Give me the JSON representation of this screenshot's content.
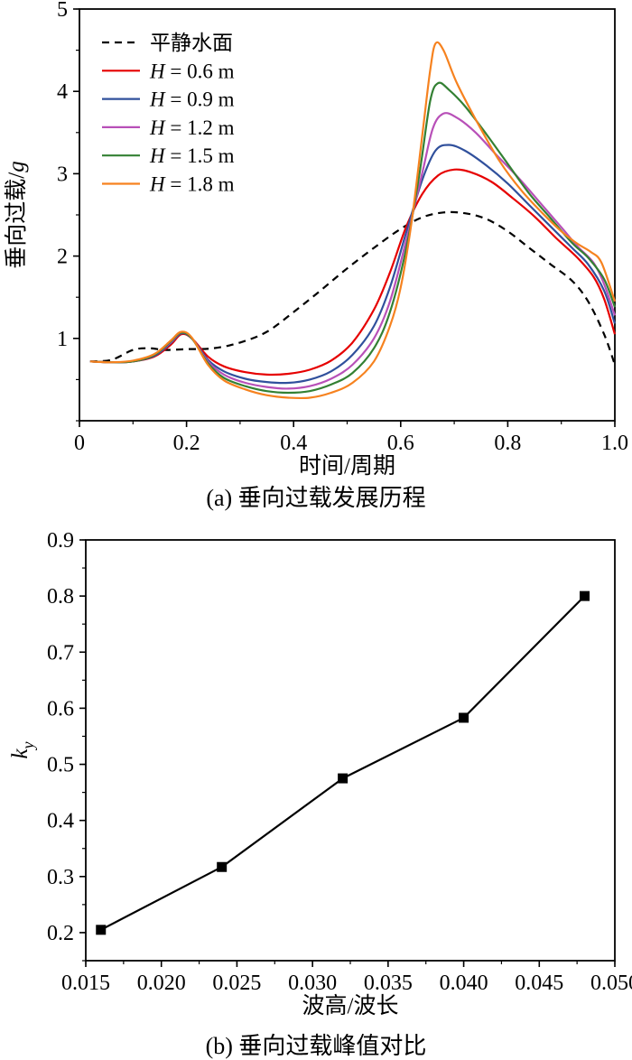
{
  "chart_data": [
    {
      "type": "line",
      "caption": "(a) 垂向过载发展历程",
      "xlabel": "时间/周期",
      "ylabel": "垂向过载/g",
      "ylabel_parts": [
        {
          "t": "垂向过载/"
        },
        {
          "t": "g",
          "i": true
        }
      ],
      "xlim": [
        0,
        1.0
      ],
      "ylim": [
        0,
        5
      ],
      "xticks": [
        {
          "v": 0,
          "label": "0"
        },
        {
          "v": 0.2,
          "label": "0.2"
        },
        {
          "v": 0.4,
          "label": "0.4"
        },
        {
          "v": 0.6,
          "label": "0.6"
        },
        {
          "v": 0.8,
          "label": "0.8"
        },
        {
          "v": 1.0,
          "label": "1.0"
        }
      ],
      "yticks": [
        {
          "v": 1,
          "label": "1"
        },
        {
          "v": 2,
          "label": "2"
        },
        {
          "v": 3,
          "label": "3"
        },
        {
          "v": 4,
          "label": "4"
        },
        {
          "v": 5,
          "label": "5"
        }
      ],
      "xminor": 0.1,
      "yminor": 0.5,
      "grid": false,
      "legend": {
        "position": "top-left"
      },
      "series": [
        {
          "name": "平静水面",
          "label_parts": [
            {
              "t": "平静水面"
            }
          ],
          "color": "#000000",
          "dash": "8 6",
          "points": [
            [
              0.02,
              0.72
            ],
            [
              0.06,
              0.74
            ],
            [
              0.1,
              0.86
            ],
            [
              0.13,
              0.88
            ],
            [
              0.16,
              0.86
            ],
            [
              0.2,
              0.87
            ],
            [
              0.25,
              0.88
            ],
            [
              0.3,
              0.95
            ],
            [
              0.35,
              1.08
            ],
            [
              0.4,
              1.32
            ],
            [
              0.45,
              1.58
            ],
            [
              0.5,
              1.85
            ],
            [
              0.55,
              2.1
            ],
            [
              0.6,
              2.33
            ],
            [
              0.64,
              2.47
            ],
            [
              0.68,
              2.53
            ],
            [
              0.72,
              2.52
            ],
            [
              0.76,
              2.45
            ],
            [
              0.8,
              2.3
            ],
            [
              0.84,
              2.1
            ],
            [
              0.88,
              1.9
            ],
            [
              0.92,
              1.7
            ],
            [
              0.95,
              1.45
            ],
            [
              0.98,
              1.05
            ],
            [
              1.0,
              0.68
            ]
          ]
        },
        {
          "name": "H = 0.6 m",
          "label_parts": [
            {
              "t": "H",
              "i": true
            },
            {
              "t": " = 0.6 m"
            }
          ],
          "color": "#e60000",
          "points": [
            [
              0.02,
              0.72
            ],
            [
              0.06,
              0.71
            ],
            [
              0.1,
              0.72
            ],
            [
              0.14,
              0.78
            ],
            [
              0.17,
              0.92
            ],
            [
              0.19,
              1.05
            ],
            [
              0.21,
              1.0
            ],
            [
              0.24,
              0.78
            ],
            [
              0.27,
              0.66
            ],
            [
              0.31,
              0.59
            ],
            [
              0.35,
              0.56
            ],
            [
              0.39,
              0.57
            ],
            [
              0.43,
              0.62
            ],
            [
              0.47,
              0.73
            ],
            [
              0.51,
              0.95
            ],
            [
              0.55,
              1.35
            ],
            [
              0.58,
              1.8
            ],
            [
              0.61,
              2.35
            ],
            [
              0.64,
              2.75
            ],
            [
              0.67,
              2.98
            ],
            [
              0.7,
              3.05
            ],
            [
              0.73,
              3.02
            ],
            [
              0.77,
              2.9
            ],
            [
              0.81,
              2.7
            ],
            [
              0.85,
              2.48
            ],
            [
              0.89,
              2.22
            ],
            [
              0.93,
              1.98
            ],
            [
              0.96,
              1.75
            ],
            [
              0.98,
              1.48
            ],
            [
              1.0,
              1.05
            ]
          ]
        },
        {
          "name": "H = 0.9 m",
          "label_parts": [
            {
              "t": "H",
              "i": true
            },
            {
              "t": " = 0.9 m"
            }
          ],
          "color": "#30509c",
          "points": [
            [
              0.02,
              0.72
            ],
            [
              0.06,
              0.71
            ],
            [
              0.1,
              0.72
            ],
            [
              0.14,
              0.79
            ],
            [
              0.17,
              0.94
            ],
            [
              0.19,
              1.06
            ],
            [
              0.21,
              1.0
            ],
            [
              0.24,
              0.74
            ],
            [
              0.27,
              0.6
            ],
            [
              0.31,
              0.51
            ],
            [
              0.35,
              0.47
            ],
            [
              0.39,
              0.46
            ],
            [
              0.43,
              0.5
            ],
            [
              0.47,
              0.6
            ],
            [
              0.51,
              0.8
            ],
            [
              0.55,
              1.15
            ],
            [
              0.58,
              1.62
            ],
            [
              0.61,
              2.28
            ],
            [
              0.64,
              2.92
            ],
            [
              0.665,
              3.28
            ],
            [
              0.69,
              3.35
            ],
            [
              0.72,
              3.28
            ],
            [
              0.76,
              3.1
            ],
            [
              0.8,
              2.88
            ],
            [
              0.84,
              2.62
            ],
            [
              0.88,
              2.36
            ],
            [
              0.92,
              2.1
            ],
            [
              0.95,
              1.9
            ],
            [
              0.98,
              1.58
            ],
            [
              1.0,
              1.18
            ]
          ]
        },
        {
          "name": "H = 1.2 m",
          "label_parts": [
            {
              "t": "H",
              "i": true
            },
            {
              "t": " = 1.2 m"
            }
          ],
          "color": "#b850b8",
          "points": [
            [
              0.02,
              0.72
            ],
            [
              0.06,
              0.71
            ],
            [
              0.1,
              0.72
            ],
            [
              0.14,
              0.8
            ],
            [
              0.17,
              0.95
            ],
            [
              0.19,
              1.07
            ],
            [
              0.21,
              1.0
            ],
            [
              0.24,
              0.72
            ],
            [
              0.27,
              0.56
            ],
            [
              0.31,
              0.46
            ],
            [
              0.35,
              0.41
            ],
            [
              0.39,
              0.39
            ],
            [
              0.43,
              0.42
            ],
            [
              0.47,
              0.51
            ],
            [
              0.51,
              0.68
            ],
            [
              0.55,
              1.0
            ],
            [
              0.58,
              1.45
            ],
            [
              0.61,
              2.18
            ],
            [
              0.64,
              3.0
            ],
            [
              0.66,
              3.55
            ],
            [
              0.68,
              3.73
            ],
            [
              0.705,
              3.68
            ],
            [
              0.74,
              3.5
            ],
            [
              0.78,
              3.22
            ],
            [
              0.82,
              2.95
            ],
            [
              0.86,
              2.65
            ],
            [
              0.9,
              2.35
            ],
            [
              0.93,
              2.12
            ],
            [
              0.96,
              1.92
            ],
            [
              0.98,
              1.66
            ],
            [
              1.0,
              1.28
            ]
          ]
        },
        {
          "name": "H = 1.5 m",
          "label_parts": [
            {
              "t": "H",
              "i": true
            },
            {
              "t": " = 1.5 m"
            }
          ],
          "color": "#338033",
          "points": [
            [
              0.02,
              0.72
            ],
            [
              0.06,
              0.71
            ],
            [
              0.1,
              0.72
            ],
            [
              0.14,
              0.8
            ],
            [
              0.17,
              0.96
            ],
            [
              0.19,
              1.07
            ],
            [
              0.21,
              1.0
            ],
            [
              0.24,
              0.7
            ],
            [
              0.27,
              0.52
            ],
            [
              0.31,
              0.42
            ],
            [
              0.35,
              0.36
            ],
            [
              0.39,
              0.34
            ],
            [
              0.43,
              0.36
            ],
            [
              0.47,
              0.44
            ],
            [
              0.51,
              0.58
            ],
            [
              0.55,
              0.88
            ],
            [
              0.58,
              1.32
            ],
            [
              0.61,
              2.08
            ],
            [
              0.635,
              3.0
            ],
            [
              0.655,
              3.88
            ],
            [
              0.67,
              4.1
            ],
            [
              0.69,
              4.02
            ],
            [
              0.72,
              3.82
            ],
            [
              0.76,
              3.48
            ],
            [
              0.8,
              3.12
            ],
            [
              0.84,
              2.76
            ],
            [
              0.88,
              2.46
            ],
            [
              0.92,
              2.16
            ],
            [
              0.95,
              1.98
            ],
            [
              0.98,
              1.72
            ],
            [
              1.0,
              1.38
            ]
          ]
        },
        {
          "name": "H = 1.8 m",
          "label_parts": [
            {
              "t": "H",
              "i": true
            },
            {
              "t": " = 1.8 m"
            }
          ],
          "color": "#f6821f",
          "points": [
            [
              0.02,
              0.72
            ],
            [
              0.06,
              0.71
            ],
            [
              0.1,
              0.73
            ],
            [
              0.14,
              0.81
            ],
            [
              0.17,
              0.97
            ],
            [
              0.19,
              1.08
            ],
            [
              0.21,
              1.01
            ],
            [
              0.24,
              0.68
            ],
            [
              0.27,
              0.49
            ],
            [
              0.31,
              0.38
            ],
            [
              0.35,
              0.31
            ],
            [
              0.39,
              0.28
            ],
            [
              0.43,
              0.28
            ],
            [
              0.47,
              0.34
            ],
            [
              0.51,
              0.46
            ],
            [
              0.55,
              0.72
            ],
            [
              0.58,
              1.15
            ],
            [
              0.6,
              1.62
            ],
            [
              0.62,
              2.4
            ],
            [
              0.64,
              3.45
            ],
            [
              0.655,
              4.25
            ],
            [
              0.665,
              4.58
            ],
            [
              0.68,
              4.5
            ],
            [
              0.705,
              4.1
            ],
            [
              0.745,
              3.6
            ],
            [
              0.785,
              3.15
            ],
            [
              0.825,
              2.8
            ],
            [
              0.865,
              2.52
            ],
            [
              0.9,
              2.3
            ],
            [
              0.93,
              2.15
            ],
            [
              0.955,
              2.05
            ],
            [
              0.975,
              1.92
            ],
            [
              1.0,
              1.45
            ]
          ]
        }
      ]
    },
    {
      "type": "line",
      "caption": "(b) 垂向过载峰值对比",
      "xlabel": "波高/波长",
      "ylabel": "ky",
      "ylabel_parts": [
        {
          "t": "k",
          "i": true
        },
        {
          "t": "y",
          "i": true,
          "sub": true
        }
      ],
      "xlim": [
        0.015,
        0.05
      ],
      "ylim": [
        0.15,
        0.9
      ],
      "xticks": [
        {
          "v": 0.015,
          "label": "0.015"
        },
        {
          "v": 0.02,
          "label": "0.020"
        },
        {
          "v": 0.025,
          "label": "0.025"
        },
        {
          "v": 0.03,
          "label": "0.030"
        },
        {
          "v": 0.035,
          "label": "0.035"
        },
        {
          "v": 0.04,
          "label": "0.040"
        },
        {
          "v": 0.045,
          "label": "0.045"
        },
        {
          "v": 0.05,
          "label": "0.050"
        }
      ],
      "yticks": [
        {
          "v": 0.2,
          "label": "0.2"
        },
        {
          "v": 0.3,
          "label": "0.3"
        },
        {
          "v": 0.4,
          "label": "0.4"
        },
        {
          "v": 0.5,
          "label": "0.5"
        },
        {
          "v": 0.6,
          "label": "0.6"
        },
        {
          "v": 0.7,
          "label": "0.7"
        },
        {
          "v": 0.8,
          "label": "0.8"
        },
        {
          "v": 0.9,
          "label": "0.9"
        }
      ],
      "xminor": 0.0025,
      "yminor": 0.05,
      "grid": false,
      "series": [
        {
          "name": "ky 峰值",
          "color": "#000000",
          "marker": "square",
          "straight": true,
          "points": [
            [
              0.016,
              0.205
            ],
            [
              0.024,
              0.317
            ],
            [
              0.032,
              0.475
            ],
            [
              0.04,
              0.583
            ],
            [
              0.048,
              0.8
            ]
          ]
        }
      ]
    }
  ]
}
